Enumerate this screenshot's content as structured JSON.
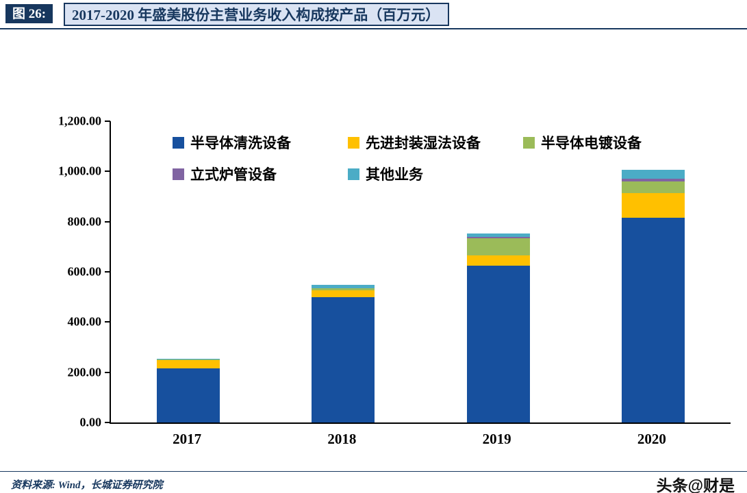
{
  "header": {
    "figure_label": "图 26:",
    "title": "2017-2020 年盛美股份主营业务收入构成按产品（百万元）"
  },
  "footer": {
    "source": "资料来源: Wind，长城证券研究院",
    "watermark": "头条@财是"
  },
  "chart_data": {
    "type": "bar",
    "stacked": true,
    "title": "2017-2020 年盛美股份主营业务收入构成按产品（百万元）",
    "unit": "百万元",
    "categories": [
      "2017",
      "2018",
      "2019",
      "2020"
    ],
    "series": [
      {
        "name": "半导体清洗设备",
        "color": "#17509E",
        "values": [
          215,
          500,
          625,
          815
        ]
      },
      {
        "name": "先进封装湿法设备",
        "color": "#FFC000",
        "values": [
          33,
          27,
          40,
          100
        ]
      },
      {
        "name": "半导体电镀设备",
        "color": "#9BBB59",
        "values": [
          2,
          8,
          70,
          45
        ]
      },
      {
        "name": "立式炉管设备",
        "color": "#8064A2",
        "values": [
          0,
          0,
          3,
          12
        ]
      },
      {
        "name": "其他业务",
        "color": "#4BACC6",
        "values": [
          3,
          13,
          15,
          35
        ]
      }
    ],
    "ylim": [
      0,
      1200
    ],
    "yticks": [
      0,
      200,
      400,
      600,
      800,
      1000,
      1200
    ],
    "ytick_labels": [
      "0.00",
      "200.00",
      "400.00",
      "600.00",
      "800.00",
      "1,000.00",
      "1,200.00"
    ],
    "legend_position": "top-left-inside",
    "grid": false
  }
}
